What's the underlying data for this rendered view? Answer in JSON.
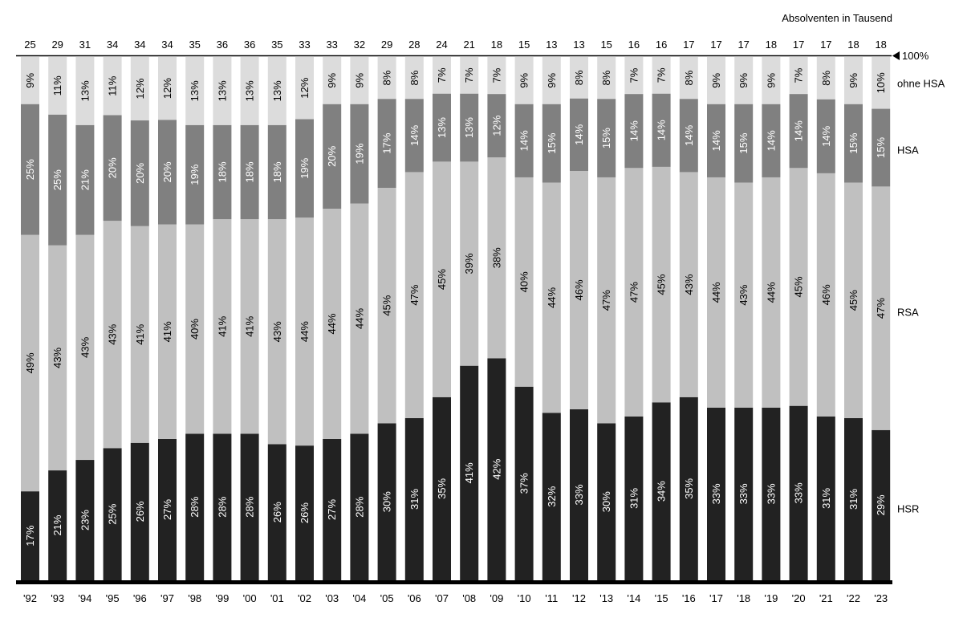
{
  "chart_data": {
    "type": "bar",
    "stacked": "percent",
    "title": "",
    "unit_label": "Absolventen in Tausend",
    "top_marker_label": "100%",
    "categories": [
      "'92",
      "'93",
      "'94",
      "'95",
      "'96",
      "'97",
      "'98",
      "'99",
      "'00",
      "'01",
      "'02",
      "'03",
      "'04",
      "'05",
      "'06",
      "'07",
      "'08",
      "'09",
      "'10",
      "'11",
      "'12",
      "'13",
      "'14",
      "'15",
      "'16",
      "'17",
      "'18",
      "'19",
      "'20",
      "'21",
      "'22",
      "'23"
    ],
    "totals": [
      25,
      29,
      31,
      34,
      34,
      34,
      35,
      36,
      36,
      35,
      33,
      33,
      32,
      29,
      28,
      24,
      21,
      18,
      15,
      13,
      13,
      15,
      16,
      16,
      17,
      17,
      17,
      18,
      17,
      17,
      18,
      18
    ],
    "series": [
      {
        "name": "HSR",
        "color": "#222222",
        "label_color": "#ffffff",
        "values": [
          17,
          21,
          23,
          25,
          26,
          27,
          28,
          28,
          28,
          26,
          26,
          27,
          28,
          30,
          31,
          35,
          41,
          42,
          37,
          32,
          33,
          30,
          31,
          34,
          35,
          33,
          33,
          33,
          33,
          31,
          31,
          29
        ]
      },
      {
        "name": "RSA",
        "color": "#c0c0c0",
        "label_color": "#000000",
        "values": [
          49,
          43,
          43,
          43,
          41,
          41,
          40,
          41,
          41,
          43,
          44,
          44,
          44,
          45,
          47,
          45,
          39,
          38,
          40,
          44,
          46,
          47,
          47,
          45,
          43,
          44,
          43,
          44,
          45,
          46,
          45,
          47
        ]
      },
      {
        "name": "HSA",
        "color": "#808080",
        "label_color": "#ffffff",
        "values": [
          25,
          25,
          21,
          20,
          20,
          20,
          19,
          18,
          18,
          18,
          19,
          20,
          19,
          17,
          14,
          13,
          13,
          12,
          14,
          15,
          14,
          15,
          14,
          14,
          14,
          14,
          15,
          14,
          14,
          14,
          15,
          15
        ]
      },
      {
        "name": "ohne HSA",
        "color": "#dcdcdc",
        "label_color": "#000000",
        "values": [
          9,
          11,
          13,
          11,
          12,
          12,
          13,
          13,
          13,
          13,
          12,
          9,
          9,
          8,
          8,
          7,
          7,
          7,
          9,
          9,
          8,
          8,
          7,
          7,
          8,
          9,
          9,
          9,
          7,
          8,
          9,
          10
        ]
      }
    ],
    "value_suffix": "%",
    "ylim": [
      0,
      100
    ],
    "legend": "right",
    "grid": false
  }
}
